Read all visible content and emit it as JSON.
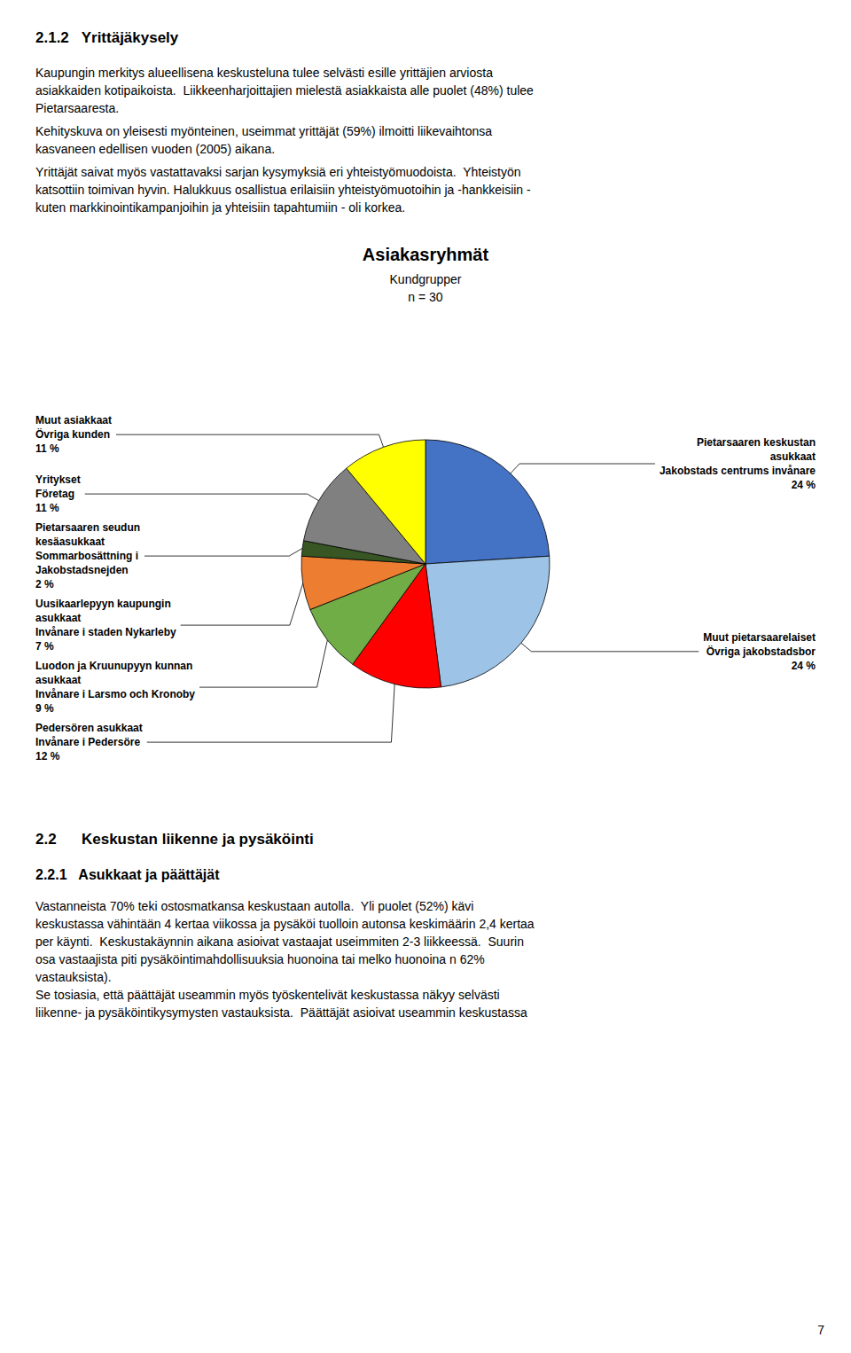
{
  "chart_data": {
    "type": "pie",
    "title": "Asiakasryhmät",
    "subtitle": "Kundgrupper\nn = 30",
    "categories": [
      "Pietarsaaren keskustan\nasukkaat\nJakobstads centrums invånare",
      "Muut pietarsaarelaiset\nÖvriga jakobstadsbor",
      "Pedersören asukkaat\nInvånare i Pedersöre",
      "Luodon ja Kruunupyyn kunnan\nasukkaat\nInvånare i Larsmo och Kronoby",
      "Uusikaarlepyyn kaupungin\nasukkaat\nInvånare i staden Nykarleby",
      "Pietarsaaren seudun\nkesäasukkaat\nSommarbosättning i\nJakobstadsnejden",
      "Yritykset\nFöretag",
      "Muut asiakkaat\nÖvriga kunden"
    ],
    "values": [
      24,
      24,
      12,
      9,
      7,
      2,
      11,
      11
    ],
    "value_labels": [
      "24 %",
      "24 %",
      "12 %",
      "9 %",
      "7 %",
      "2 %",
      "11 %",
      "11 %"
    ],
    "colors": [
      "#4472C4",
      "#9DC3E6",
      "#FF0000",
      "#70AD47",
      "#ED7D31",
      "#375623",
      "#808080",
      "#FFFF00"
    ],
    "data_labels": true,
    "annotations": [
      "2.1.2   Yrittäjäkysely",
      "Kaupungin merkitys alueellisena keskusteluna tulee selvästi esille yrittäjien arviosta\nasiakkaiden kotipaikoista.  Liikkeenharjoittajien mielestä asiakkaista alle puolet (48%) tulee\nPietarsaaresta.",
      "Kehityskuva on yleisesti myönteinen, useimmat yrittäjät (59%) ilmoitti liikevaihtonsa\nkasvaneen edellisen vuoden (2005) aikana.",
      "Yrittäjät saivat myös vastattavaksi sarjan kysymyksiä eri yhteistyömuodoista.  Yhteistyön\nkatsottiin toimivan hyvin. Halukkuus osallistua erilaisiin yhteistyömuotoihin ja -hankkeisiin -\nkuten markkinointikampanjoihin ja yhteisiin tapahtumiin - oli korkea.",
      "2.2      Keskustan liikenne ja pysäköinti",
      "2.2.1   Asukkaat ja päättäjät",
      "Vastanneista 70% teki ostosmatkansa keskustaan autolla.  Yli puolet (52%) kävi\nkeskustassa vähintään 4 kertaa viikossa ja pysäköi tuolloin autonsa keskimäärin 2,4 kertaa\nper käynti.  Keskustakäynnin aikana asioivat vastaajat useimmiten 2-3 liikkeessä.  Suurin\nosa vastaajista piti pysäköintimahdollisuuksia huonoina tai melko huonoina n 62%\nvastauksista).\nSe tosiasia, että päättäjät useammin myös työskentelivät keskustassa näkyy selvästi\nliikenne- ja pysäköintikysymysten vastauksista.  Päättäjät asioivat useammin keskustassa",
      "7"
    ]
  }
}
